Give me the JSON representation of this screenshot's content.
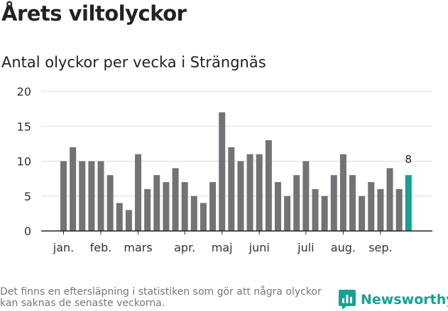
{
  "title": "Årets viltolyckor",
  "subtitle": "Antal olyckor per vecka i Strängnäs",
  "footnote": "Det finns en eftersläpning i statistiken som gör att några olyckor kan saknas de senaste veckorna.",
  "brand": {
    "name": "Newsworthy"
  },
  "colors": {
    "bar": "#737276",
    "highlight": "#16a190",
    "grid": "#dddddd",
    "axis": "#222222",
    "brand": "#16a190"
  },
  "chart_data": {
    "type": "bar",
    "title": "Årets viltolyckor",
    "subtitle": "Antal olyckor per vecka i Strängnäs",
    "xlabel": "",
    "ylabel": "",
    "ylim": [
      0,
      20
    ],
    "yticks": [
      0,
      5,
      10,
      15,
      20
    ],
    "grid": true,
    "values": [
      10,
      12,
      10,
      10,
      10,
      8,
      4,
      3,
      11,
      6,
      8,
      7,
      9,
      7,
      5,
      4,
      7,
      17,
      12,
      10,
      11,
      11,
      13,
      7,
      5,
      8,
      10,
      6,
      5,
      8,
      11,
      8,
      5,
      7,
      6,
      9,
      6,
      8
    ],
    "highlight_index": 37,
    "highlight_label": "8",
    "month_ticks": [
      {
        "label": "jan.",
        "bar_index": 0
      },
      {
        "label": "feb.",
        "bar_index": 4
      },
      {
        "label": "mars",
        "bar_index": 8
      },
      {
        "label": "apr.",
        "bar_index": 13
      },
      {
        "label": "maj",
        "bar_index": 17
      },
      {
        "label": "juni",
        "bar_index": 21
      },
      {
        "label": "juli",
        "bar_index": 26
      },
      {
        "label": "aug.",
        "bar_index": 30
      },
      {
        "label": "sep.",
        "bar_index": 34
      }
    ]
  }
}
